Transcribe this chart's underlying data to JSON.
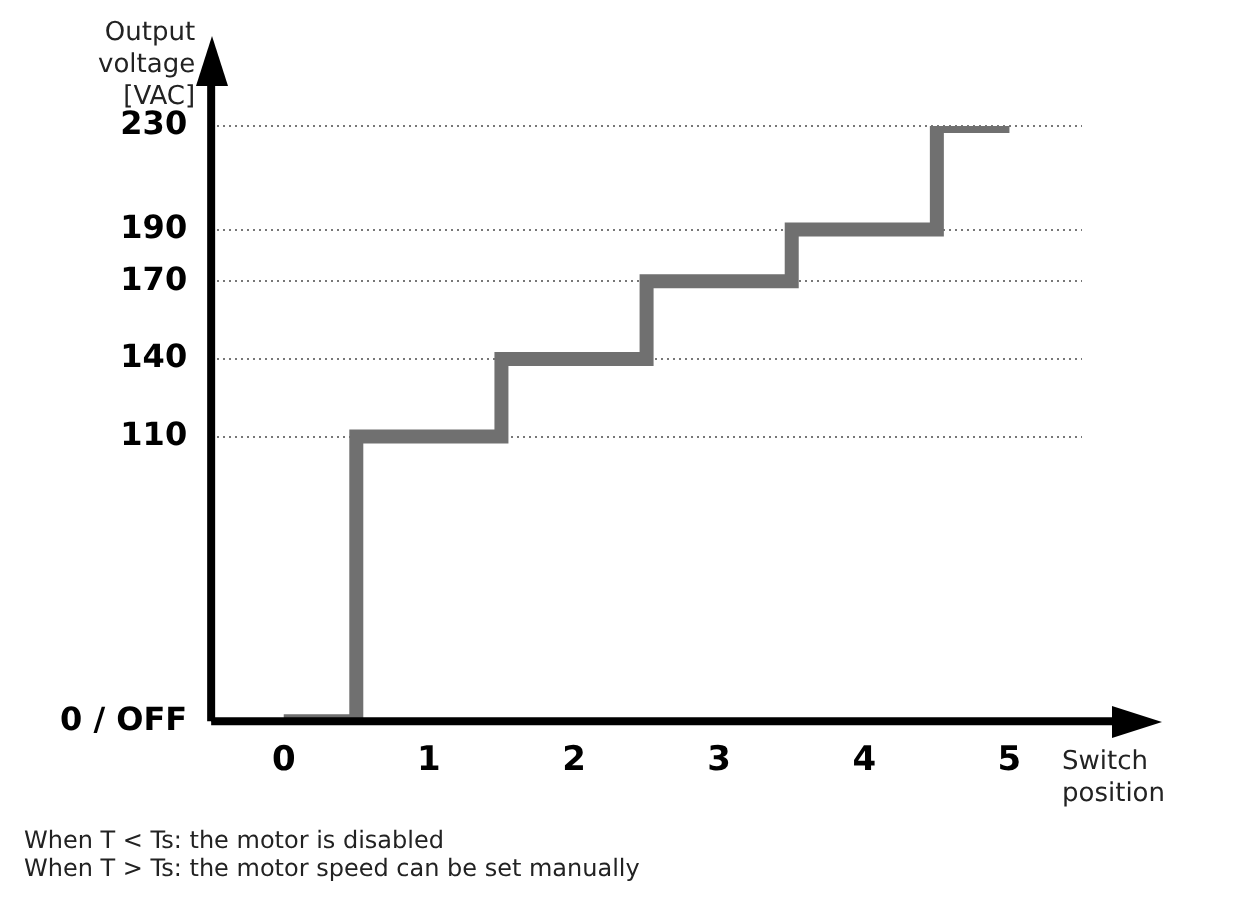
{
  "chart_data": {
    "type": "step",
    "ylabel": "Output voltage [VAC]",
    "xlabel": "Switch position",
    "categories": [
      "0",
      "1",
      "2",
      "3",
      "4",
      "5"
    ],
    "series": [
      {
        "color": "#707070",
        "values": [
          0,
          110,
          140,
          170,
          190,
          230
        ]
      }
    ],
    "ylim": [
      0,
      230
    ],
    "yticks": [
      {
        "value": 0,
        "label": "0 / OFF"
      },
      110,
      140,
      170,
      190,
      230
    ],
    "grid": "y",
    "legend": false,
    "annotations": [
      "When T < Ts: the motor is disabled",
      "When T > Ts: the motor speed can be set manually"
    ]
  }
}
